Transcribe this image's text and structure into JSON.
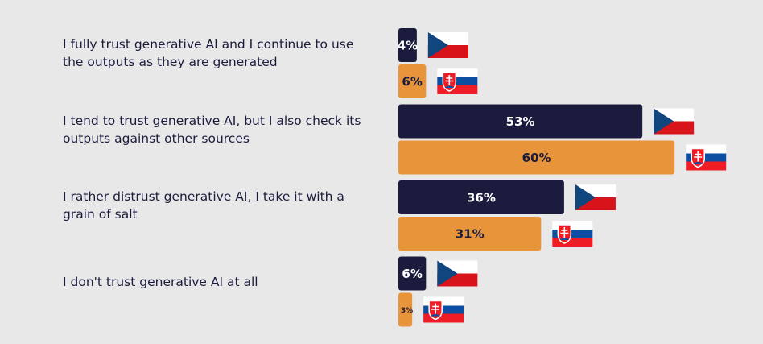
{
  "chart_data": {
    "type": "hbar",
    "categories": [
      "I fully trust generative AI and I continue to use the outputs as they are generated",
      "I tend to trust generative AI, but I also check its outputs against other sources",
      "I rather distrust generative AI, I take it with a grain of salt",
      "I don't trust generative AI at all"
    ],
    "series": [
      {
        "color": "#1b1c3d",
        "flag": "cz",
        "values": [
          4,
          53,
          36,
          6
        ],
        "value_labels": [
          "4%",
          "53%",
          "36%",
          "6%"
        ]
      },
      {
        "color": "#e8943a",
        "flag": "sk",
        "values": [
          6,
          60,
          31,
          3
        ],
        "value_labels": [
          "6%",
          "60%",
          "31%",
          "3%"
        ]
      }
    ]
  }
}
